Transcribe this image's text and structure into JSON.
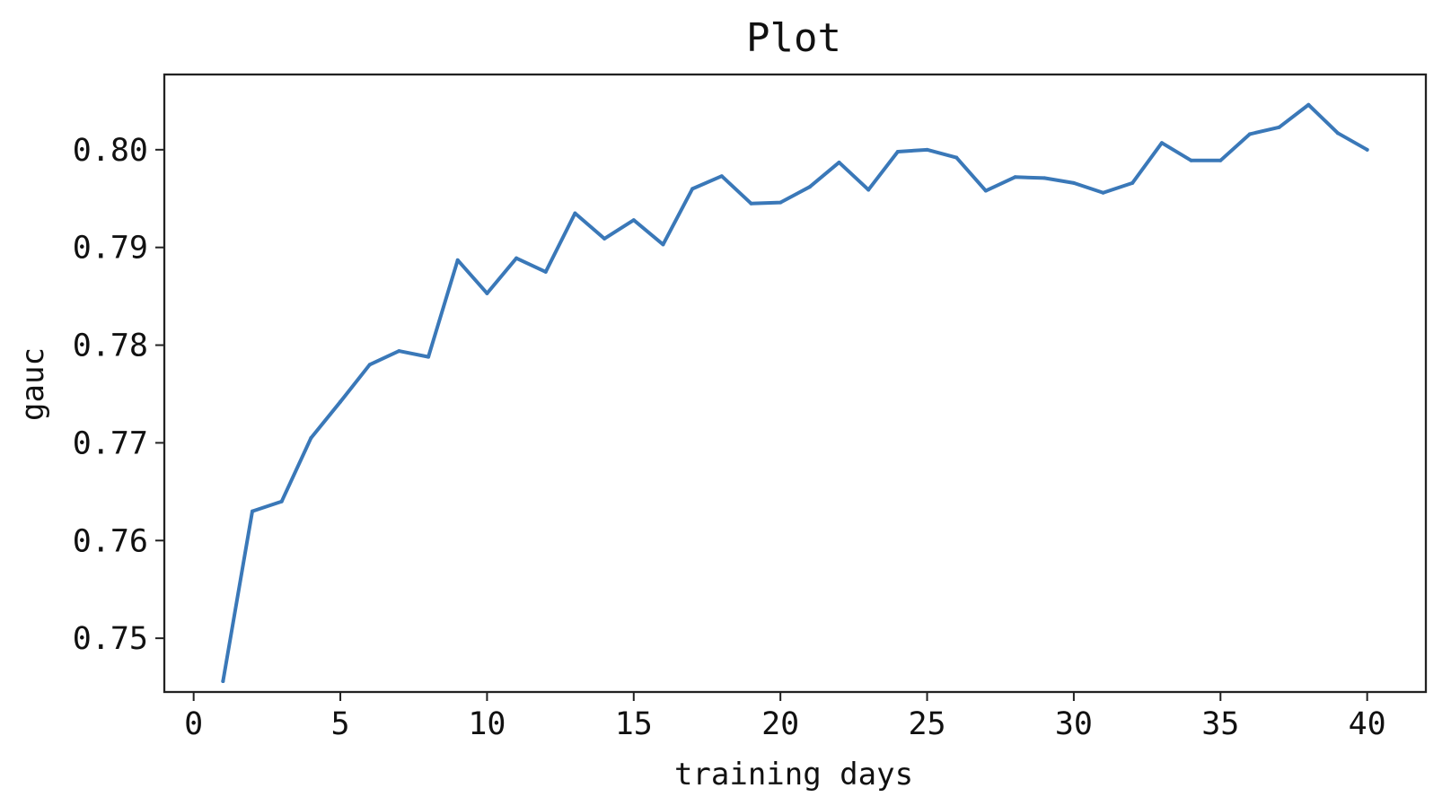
{
  "chart_data": {
    "type": "line",
    "title": "Plot",
    "xlabel": "training days",
    "ylabel": "gauc",
    "xlim": [
      -1,
      42
    ],
    "ylim": [
      0.7445,
      0.8077
    ],
    "xticks": [
      0,
      5,
      10,
      15,
      20,
      25,
      30,
      35,
      40
    ],
    "xtick_labels": [
      "0",
      "5",
      "10",
      "15",
      "20",
      "25",
      "30",
      "35",
      "40"
    ],
    "yticks": [
      0.75,
      0.76,
      0.77,
      0.78,
      0.79,
      0.8
    ],
    "ytick_labels": [
      "0.75",
      "0.76",
      "0.77",
      "0.78",
      "0.79",
      "0.80"
    ],
    "grid": false,
    "legend": "none",
    "series": [
      {
        "color": "#3a78b8",
        "x": [
          1,
          2,
          3,
          4,
          5,
          6,
          7,
          8,
          9,
          10,
          11,
          12,
          13,
          14,
          15,
          16,
          17,
          18,
          19,
          20,
          21,
          22,
          23,
          24,
          25,
          26,
          27,
          28,
          29,
          30,
          31,
          32,
          33,
          34,
          35,
          36,
          37,
          38,
          39,
          40
        ],
        "values": [
          0.7456,
          0.763,
          0.764,
          0.7705,
          0.7742,
          0.778,
          0.7794,
          0.7788,
          0.7887,
          0.7853,
          0.7889,
          0.7875,
          0.7935,
          0.7909,
          0.7928,
          0.7903,
          0.796,
          0.7973,
          0.7945,
          0.7946,
          0.7962,
          0.7987,
          0.7959,
          0.7998,
          0.8,
          0.7992,
          0.7958,
          0.7972,
          0.7971,
          0.7966,
          0.7956,
          0.7966,
          0.8007,
          0.7989,
          0.7989,
          0.8016,
          0.8023,
          0.8046,
          0.8017,
          0.8
        ]
      }
    ]
  }
}
